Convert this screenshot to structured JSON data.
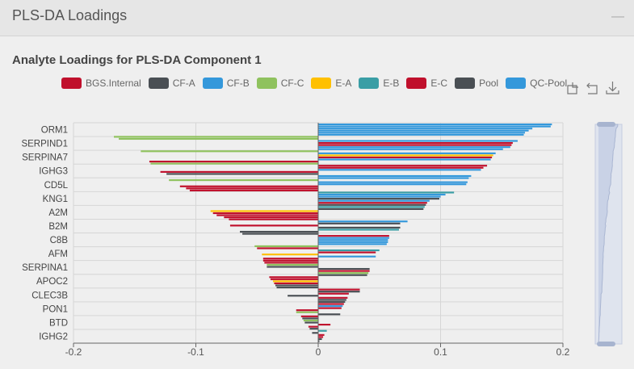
{
  "header": {
    "title": "PLS-DA Loadings",
    "minimize_icon": "minus-icon"
  },
  "subtitle": "Analyte Loadings for PLS-DA Component 1",
  "toolbox": [
    "restore-icon",
    "undo-icon",
    "download-icon"
  ],
  "legend": [
    {
      "name": "BGS.Internal",
      "color": "#c0102c"
    },
    {
      "name": "CF-A",
      "color": "#4a4f54"
    },
    {
      "name": "CF-B",
      "color": "#3498db"
    },
    {
      "name": "CF-C",
      "color": "#8fc25e"
    },
    {
      "name": "E-A",
      "color": "#ffc000"
    },
    {
      "name": "E-B",
      "color": "#3a9ea5"
    },
    {
      "name": "E-C",
      "color": "#c0102c"
    },
    {
      "name": "Pool",
      "color": "#4a4f54"
    },
    {
      "name": "QC-Pool",
      "color": "#3498db"
    }
  ],
  "chart_data": {
    "type": "bar",
    "orientation": "horizontal",
    "xlim": [
      -0.2,
      0.2
    ],
    "xticks": [
      "-0.2",
      "-0.1",
      "0",
      "0.1",
      "0.2"
    ],
    "ytick_labels": [
      "ORM1",
      "SERPIND1",
      "SERPINA7",
      "IGHG3",
      "CD5L",
      "KNG1",
      "A2M",
      "B2M",
      "C8B",
      "AFM",
      "SERPINA1",
      "APOC2",
      "CLEC3B",
      "PON1",
      "BTD",
      "IGHG2"
    ],
    "grid": true,
    "legend_position": "top",
    "data_zoom_slider": true,
    "bars": [
      [
        "QC-Pool",
        0.191
      ],
      [
        "QC-Pool",
        0.19
      ],
      [
        "CF-B",
        0.175
      ],
      [
        "QC-Pool",
        0.172
      ],
      [
        "CF-B",
        0.169
      ],
      [
        "QC-Pool",
        0.168
      ],
      [
        "CF-C",
        -0.167
      ],
      [
        "CF-C",
        -0.163
      ],
      [
        "CF-B",
        0.163
      ],
      [
        "E-C",
        0.159
      ],
      [
        "BGS.Internal",
        0.158
      ],
      [
        "QC-Pool",
        0.157
      ],
      [
        "CF-B",
        0.151
      ],
      [
        "CF-C",
        -0.145
      ],
      [
        "QC-Pool",
        0.145
      ],
      [
        "E-A",
        0.143
      ],
      [
        "E-C",
        0.142
      ],
      [
        "CF-B",
        0.141
      ],
      [
        "E-C",
        -0.138
      ],
      [
        "CF-C",
        -0.137
      ],
      [
        "E-C",
        0.138
      ],
      [
        "BGS.Internal",
        0.135
      ],
      [
        "CF-B",
        0.133
      ],
      [
        "E-C",
        -0.129
      ],
      [
        "CF-A",
        -0.124
      ],
      [
        "QC-Pool",
        0.125
      ],
      [
        "CF-B",
        0.123
      ],
      [
        "CF-C",
        -0.122
      ],
      [
        "QC-Pool",
        0.122
      ],
      [
        "CF-B",
        0.121
      ],
      [
        "E-C",
        -0.113
      ],
      [
        "BGS.Internal",
        -0.108
      ],
      [
        "E-C",
        -0.105
      ],
      [
        "E-B",
        0.111
      ],
      [
        "QC-Pool",
        0.104
      ],
      [
        "CF-B",
        0.1
      ],
      [
        "Pool",
        0.099
      ],
      [
        "CF-B",
        0.091
      ],
      [
        "E-C",
        0.089
      ],
      [
        "CF-A",
        0.088
      ],
      [
        "E-B",
        0.087
      ],
      [
        "Pool",
        0.086
      ],
      [
        "E-A",
        -0.088
      ],
      [
        "E-C",
        -0.086
      ],
      [
        "BGS.Internal",
        -0.083
      ],
      [
        "E-C",
        -0.077
      ],
      [
        "E-C",
        -0.073
      ],
      [
        "QC-Pool",
        0.073
      ],
      [
        "Pool",
        0.067
      ],
      [
        "E-C",
        -0.072
      ],
      [
        "CF-A",
        0.067
      ],
      [
        "E-B",
        0.066
      ],
      [
        "CF-A",
        -0.064
      ],
      [
        "Pool",
        -0.062
      ],
      [
        "E-C",
        0.058
      ],
      [
        "CF-B",
        0.058
      ],
      [
        "QC-Pool",
        0.057
      ],
      [
        "CF-B",
        0.057
      ],
      [
        "QC-Pool",
        0.056
      ],
      [
        "CF-C",
        -0.052
      ],
      [
        "E-C",
        -0.05
      ],
      [
        "E-B",
        0.05
      ],
      [
        "E-C",
        0.047
      ],
      [
        "E-A",
        -0.046
      ],
      [
        "CF-B",
        0.047
      ],
      [
        "E-C",
        -0.045
      ],
      [
        "BGS.Internal",
        -0.045
      ],
      [
        "E-C",
        -0.044
      ],
      [
        "CF-C",
        -0.042
      ],
      [
        "CF-A",
        -0.042
      ],
      [
        "CF-A",
        0.042
      ],
      [
        "E-C",
        0.042
      ],
      [
        "CF-C",
        0.041
      ],
      [
        "Pool",
        0.04
      ],
      [
        "E-C",
        -0.04
      ],
      [
        "BGS.Internal",
        -0.039
      ],
      [
        "E-A",
        -0.037
      ],
      [
        "E-C",
        -0.036
      ],
      [
        "CF-A",
        -0.035
      ],
      [
        "Pool",
        -0.034
      ],
      [
        "E-C",
        0.034
      ],
      [
        "CF-A",
        0.034
      ],
      [
        "E-C",
        0.025
      ],
      [
        "CF-A",
        -0.025
      ],
      [
        "E-C",
        0.024
      ],
      [
        "CF-A",
        0.023
      ],
      [
        "Pool",
        0.022
      ],
      [
        "E-C",
        0.021
      ],
      [
        "CF-B",
        0.02
      ],
      [
        "BGS.Internal",
        0.019
      ],
      [
        "E-C",
        -0.018
      ],
      [
        "CF-C",
        -0.018
      ],
      [
        "Pool",
        0.018
      ],
      [
        "E-C",
        -0.014
      ],
      [
        "CF-A",
        -0.013
      ],
      [
        "CF-C",
        -0.012
      ],
      [
        "Pool",
        -0.011
      ],
      [
        "E-C",
        0.01
      ],
      [
        "E-C",
        -0.008
      ],
      [
        "CF-A",
        -0.007
      ],
      [
        "E-B",
        0.007
      ],
      [
        "Pool",
        -0.005
      ],
      [
        "E-C",
        0.005
      ],
      [
        "BGS.Internal",
        0.004
      ],
      [
        "CF-A",
        0.003
      ],
      [
        "Pool",
        0.001
      ]
    ]
  }
}
